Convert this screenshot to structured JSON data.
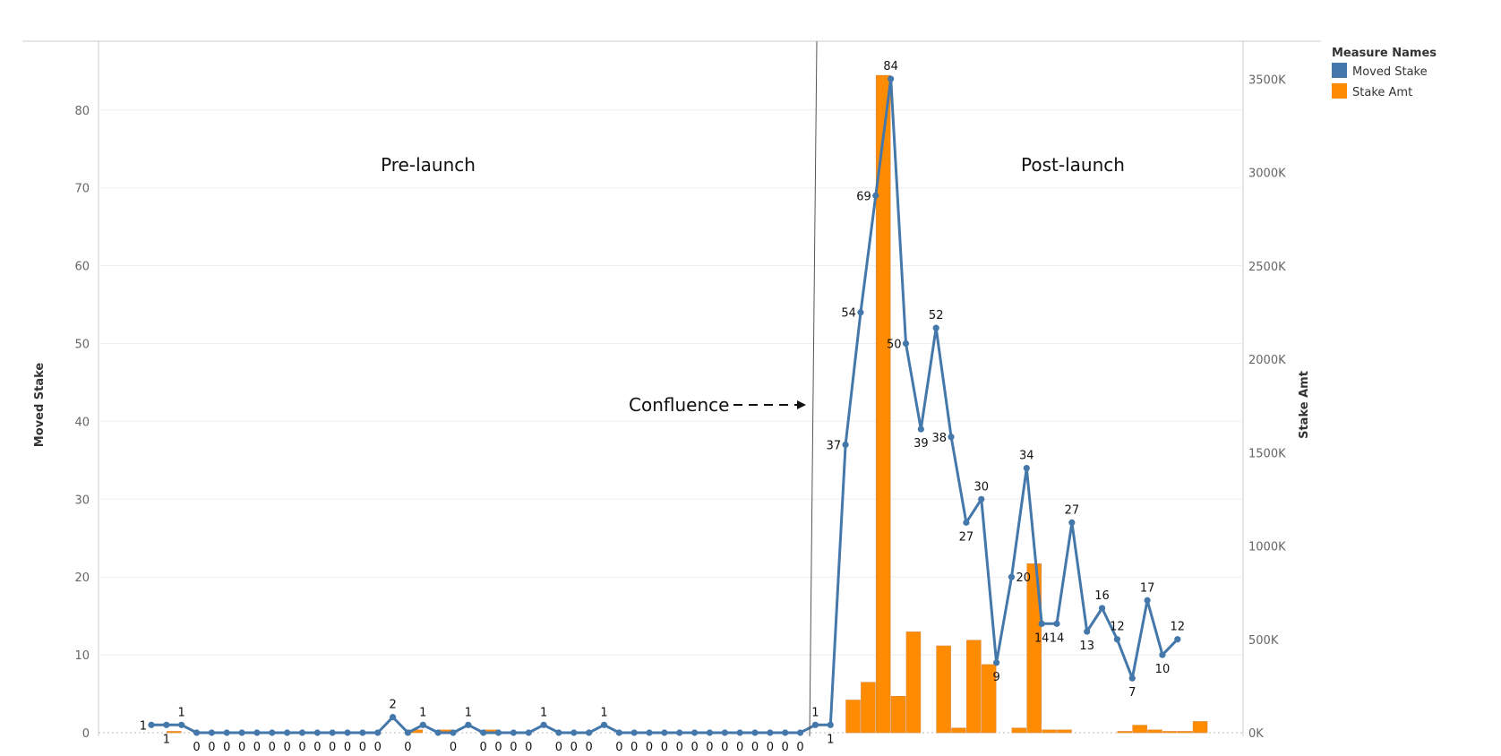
{
  "chart_data": {
    "type": "bar",
    "title": "",
    "ylabel": "Moved Stake",
    "y2label": "Stake Amt",
    "ylim": [
      0,
      85
    ],
    "y2lim": [
      0,
      3540000
    ],
    "y_ticks": [
      "0",
      "10",
      "20",
      "30",
      "40",
      "50",
      "60",
      "70",
      "80"
    ],
    "y2_ticks": [
      "0K",
      "500K",
      "1000K",
      "1500K",
      "2000K",
      "2500K",
      "3000K",
      "3500K"
    ],
    "grid": true,
    "legend": {
      "title": "Measure Names",
      "placement": "top-right",
      "entries": [
        {
          "name": "Moved Stake",
          "color": "#4477aa"
        },
        {
          "name": "Stake Amt",
          "color": "#ff8c00"
        }
      ]
    },
    "colors": {
      "line": "#4477aa",
      "bar": "#ff8c00",
      "bar_edge": "#e08a3c"
    },
    "x": [
      1,
      2,
      3,
      4,
      5,
      6,
      7,
      8,
      9,
      10,
      11,
      12,
      13,
      14,
      15,
      16,
      17,
      18,
      19,
      20,
      21,
      22,
      23,
      24,
      25,
      26,
      27,
      28,
      29,
      30,
      31,
      32,
      33,
      34,
      35,
      36,
      37,
      38,
      39,
      40,
      41,
      42,
      43,
      44,
      45,
      46,
      47,
      48,
      49,
      50,
      51,
      52,
      53,
      54,
      55,
      56,
      57,
      58,
      59,
      60,
      61,
      62,
      63,
      64,
      65,
      66,
      67,
      68,
      69,
      70
    ],
    "series": [
      {
        "name": "Moved Stake",
        "kind": "line",
        "axis": "left",
        "values": [
          1,
          1,
          1,
          0,
          0,
          0,
          0,
          0,
          0,
          0,
          0,
          0,
          0,
          0,
          0,
          0,
          2,
          0,
          1,
          0,
          0,
          1,
          0,
          0,
          0,
          0,
          1,
          0,
          0,
          0,
          1,
          0,
          0,
          0,
          0,
          0,
          0,
          0,
          0,
          0,
          0,
          0,
          0,
          0,
          1,
          1,
          37,
          54,
          69,
          84,
          50,
          39,
          52,
          38,
          27,
          30,
          9,
          20,
          34,
          14,
          14,
          27,
          13,
          16,
          12,
          7,
          17,
          10,
          12,
          null
        ]
      },
      {
        "name": "Stake Amt",
        "kind": "bar",
        "axis": "right",
        "values": [
          0,
          5000,
          0,
          0,
          0,
          0,
          0,
          0,
          0,
          0,
          0,
          0,
          0,
          0,
          0,
          0,
          0,
          15000,
          0,
          15000,
          0,
          0,
          15000,
          0,
          0,
          0,
          0,
          0,
          0,
          0,
          0,
          0,
          0,
          0,
          0,
          0,
          0,
          0,
          0,
          0,
          0,
          0,
          0,
          0,
          0,
          0,
          175000,
          270000,
          3520000,
          195000,
          540000,
          0,
          465000,
          25000,
          495000,
          365000,
          0,
          25000,
          905000,
          15000,
          15000,
          0,
          0,
          0,
          5000,
          40000,
          15000,
          5000,
          5000,
          60000
        ]
      }
    ],
    "point_labels": [
      {
        "i": 0,
        "text": "1",
        "pos": "left"
      },
      {
        "i": 1,
        "text": "1",
        "pos": "below"
      },
      {
        "i": 2,
        "text": "1",
        "pos": "above"
      },
      {
        "i": 3,
        "text": "0",
        "pos": "below"
      },
      {
        "i": 4,
        "text": "0",
        "pos": "below"
      },
      {
        "i": 5,
        "text": "0",
        "pos": "below"
      },
      {
        "i": 6,
        "text": "0",
        "pos": "below"
      },
      {
        "i": 7,
        "text": "0",
        "pos": "below"
      },
      {
        "i": 8,
        "text": "0",
        "pos": "below"
      },
      {
        "i": 9,
        "text": "0",
        "pos": "below"
      },
      {
        "i": 10,
        "text": "0",
        "pos": "below"
      },
      {
        "i": 11,
        "text": "0",
        "pos": "below"
      },
      {
        "i": 12,
        "text": "0",
        "pos": "below"
      },
      {
        "i": 13,
        "text": "0",
        "pos": "below"
      },
      {
        "i": 14,
        "text": "0",
        "pos": "below"
      },
      {
        "i": 15,
        "text": "0",
        "pos": "below"
      },
      {
        "i": 16,
        "text": "2",
        "pos": "above"
      },
      {
        "i": 17,
        "text": "0",
        "pos": "below"
      },
      {
        "i": 18,
        "text": "1",
        "pos": "above"
      },
      {
        "i": 20,
        "text": "0",
        "pos": "below"
      },
      {
        "i": 21,
        "text": "1",
        "pos": "above"
      },
      {
        "i": 22,
        "text": "0",
        "pos": "below"
      },
      {
        "i": 23,
        "text": "0",
        "pos": "below"
      },
      {
        "i": 24,
        "text": "0",
        "pos": "below"
      },
      {
        "i": 25,
        "text": "0",
        "pos": "below"
      },
      {
        "i": 26,
        "text": "1",
        "pos": "above"
      },
      {
        "i": 27,
        "text": "0",
        "pos": "below"
      },
      {
        "i": 28,
        "text": "0",
        "pos": "below"
      },
      {
        "i": 29,
        "text": "0",
        "pos": "below"
      },
      {
        "i": 30,
        "text": "1",
        "pos": "above"
      },
      {
        "i": 31,
        "text": "0",
        "pos": "below"
      },
      {
        "i": 32,
        "text": "0",
        "pos": "below"
      },
      {
        "i": 33,
        "text": "0",
        "pos": "below"
      },
      {
        "i": 34,
        "text": "0",
        "pos": "below"
      },
      {
        "i": 35,
        "text": "0",
        "pos": "below"
      },
      {
        "i": 36,
        "text": "0",
        "pos": "below"
      },
      {
        "i": 37,
        "text": "0",
        "pos": "below"
      },
      {
        "i": 38,
        "text": "0",
        "pos": "below"
      },
      {
        "i": 39,
        "text": "0",
        "pos": "below"
      },
      {
        "i": 40,
        "text": "0",
        "pos": "below"
      },
      {
        "i": 41,
        "text": "0",
        "pos": "below"
      },
      {
        "i": 42,
        "text": "0",
        "pos": "below"
      },
      {
        "i": 43,
        "text": "0",
        "pos": "below"
      },
      {
        "i": 44,
        "text": "1",
        "pos": "above"
      },
      {
        "i": 45,
        "text": "1",
        "pos": "below"
      },
      {
        "i": 46,
        "text": "37",
        "pos": "left"
      },
      {
        "i": 47,
        "text": "54",
        "pos": "left"
      },
      {
        "i": 48,
        "text": "69",
        "pos": "left"
      },
      {
        "i": 49,
        "text": "84",
        "pos": "above"
      },
      {
        "i": 50,
        "text": "50",
        "pos": "left"
      },
      {
        "i": 51,
        "text": "39",
        "pos": "below"
      },
      {
        "i": 52,
        "text": "52",
        "pos": "above"
      },
      {
        "i": 53,
        "text": "38",
        "pos": "left"
      },
      {
        "i": 54,
        "text": "27",
        "pos": "below"
      },
      {
        "i": 55,
        "text": "30",
        "pos": "above"
      },
      {
        "i": 56,
        "text": "9",
        "pos": "below"
      },
      {
        "i": 57,
        "text": "20",
        "pos": "right"
      },
      {
        "i": 58,
        "text": "34",
        "pos": "above"
      },
      {
        "i": 59,
        "text": "14",
        "pos": "below"
      },
      {
        "i": 60,
        "text": "14",
        "pos": "below"
      },
      {
        "i": 61,
        "text": "27",
        "pos": "above"
      },
      {
        "i": 62,
        "text": "13",
        "pos": "below"
      },
      {
        "i": 63,
        "text": "16",
        "pos": "above"
      },
      {
        "i": 64,
        "text": "12",
        "pos": "above"
      },
      {
        "i": 65,
        "text": "7",
        "pos": "below"
      },
      {
        "i": 66,
        "text": "17",
        "pos": "above"
      },
      {
        "i": 67,
        "text": "10",
        "pos": "below"
      },
      {
        "i": 68,
        "text": "12",
        "pos": "above"
      }
    ],
    "annotations": {
      "pre_launch": "Pre-launch",
      "post_launch": "Post-launch",
      "confluence": "Confluence"
    }
  }
}
